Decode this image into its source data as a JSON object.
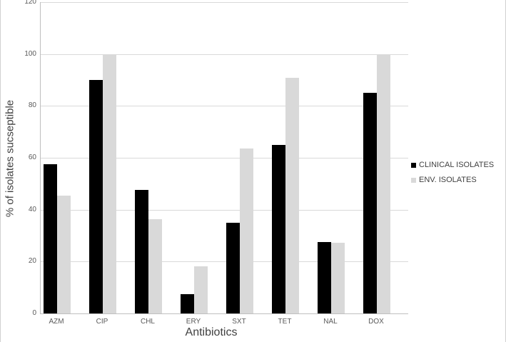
{
  "chart_data": {
    "type": "bar",
    "title": "",
    "categories": [
      "AZM",
      "CIP",
      "CHL",
      "ERY",
      "SXT",
      "TET",
      "NAL",
      "DOX"
    ],
    "series": [
      {
        "name": "CLINICAL ISOLATES",
        "color": "#000000",
        "values": [
          57.5,
          90,
          47.5,
          7.5,
          35,
          65,
          27.5,
          85
        ]
      },
      {
        "name": "ENV. ISOLATES",
        "color": "#d9d9d9",
        "values": [
          45.5,
          100,
          36.4,
          18.2,
          63.6,
          90.9,
          27.3,
          100
        ]
      }
    ],
    "xlabel": "Antibiotics",
    "ylabel": "% of isolates sucseptible",
    "ylim": [
      0,
      120
    ],
    "yticks": [
      0,
      20,
      40,
      60,
      80,
      100,
      120
    ],
    "grid": true,
    "legend_position": "right",
    "colors": {
      "gridline": "#d9d9d9",
      "axis_line": "#bfbfbf",
      "tick_text": "#595959",
      "title_text": "#404040"
    }
  }
}
